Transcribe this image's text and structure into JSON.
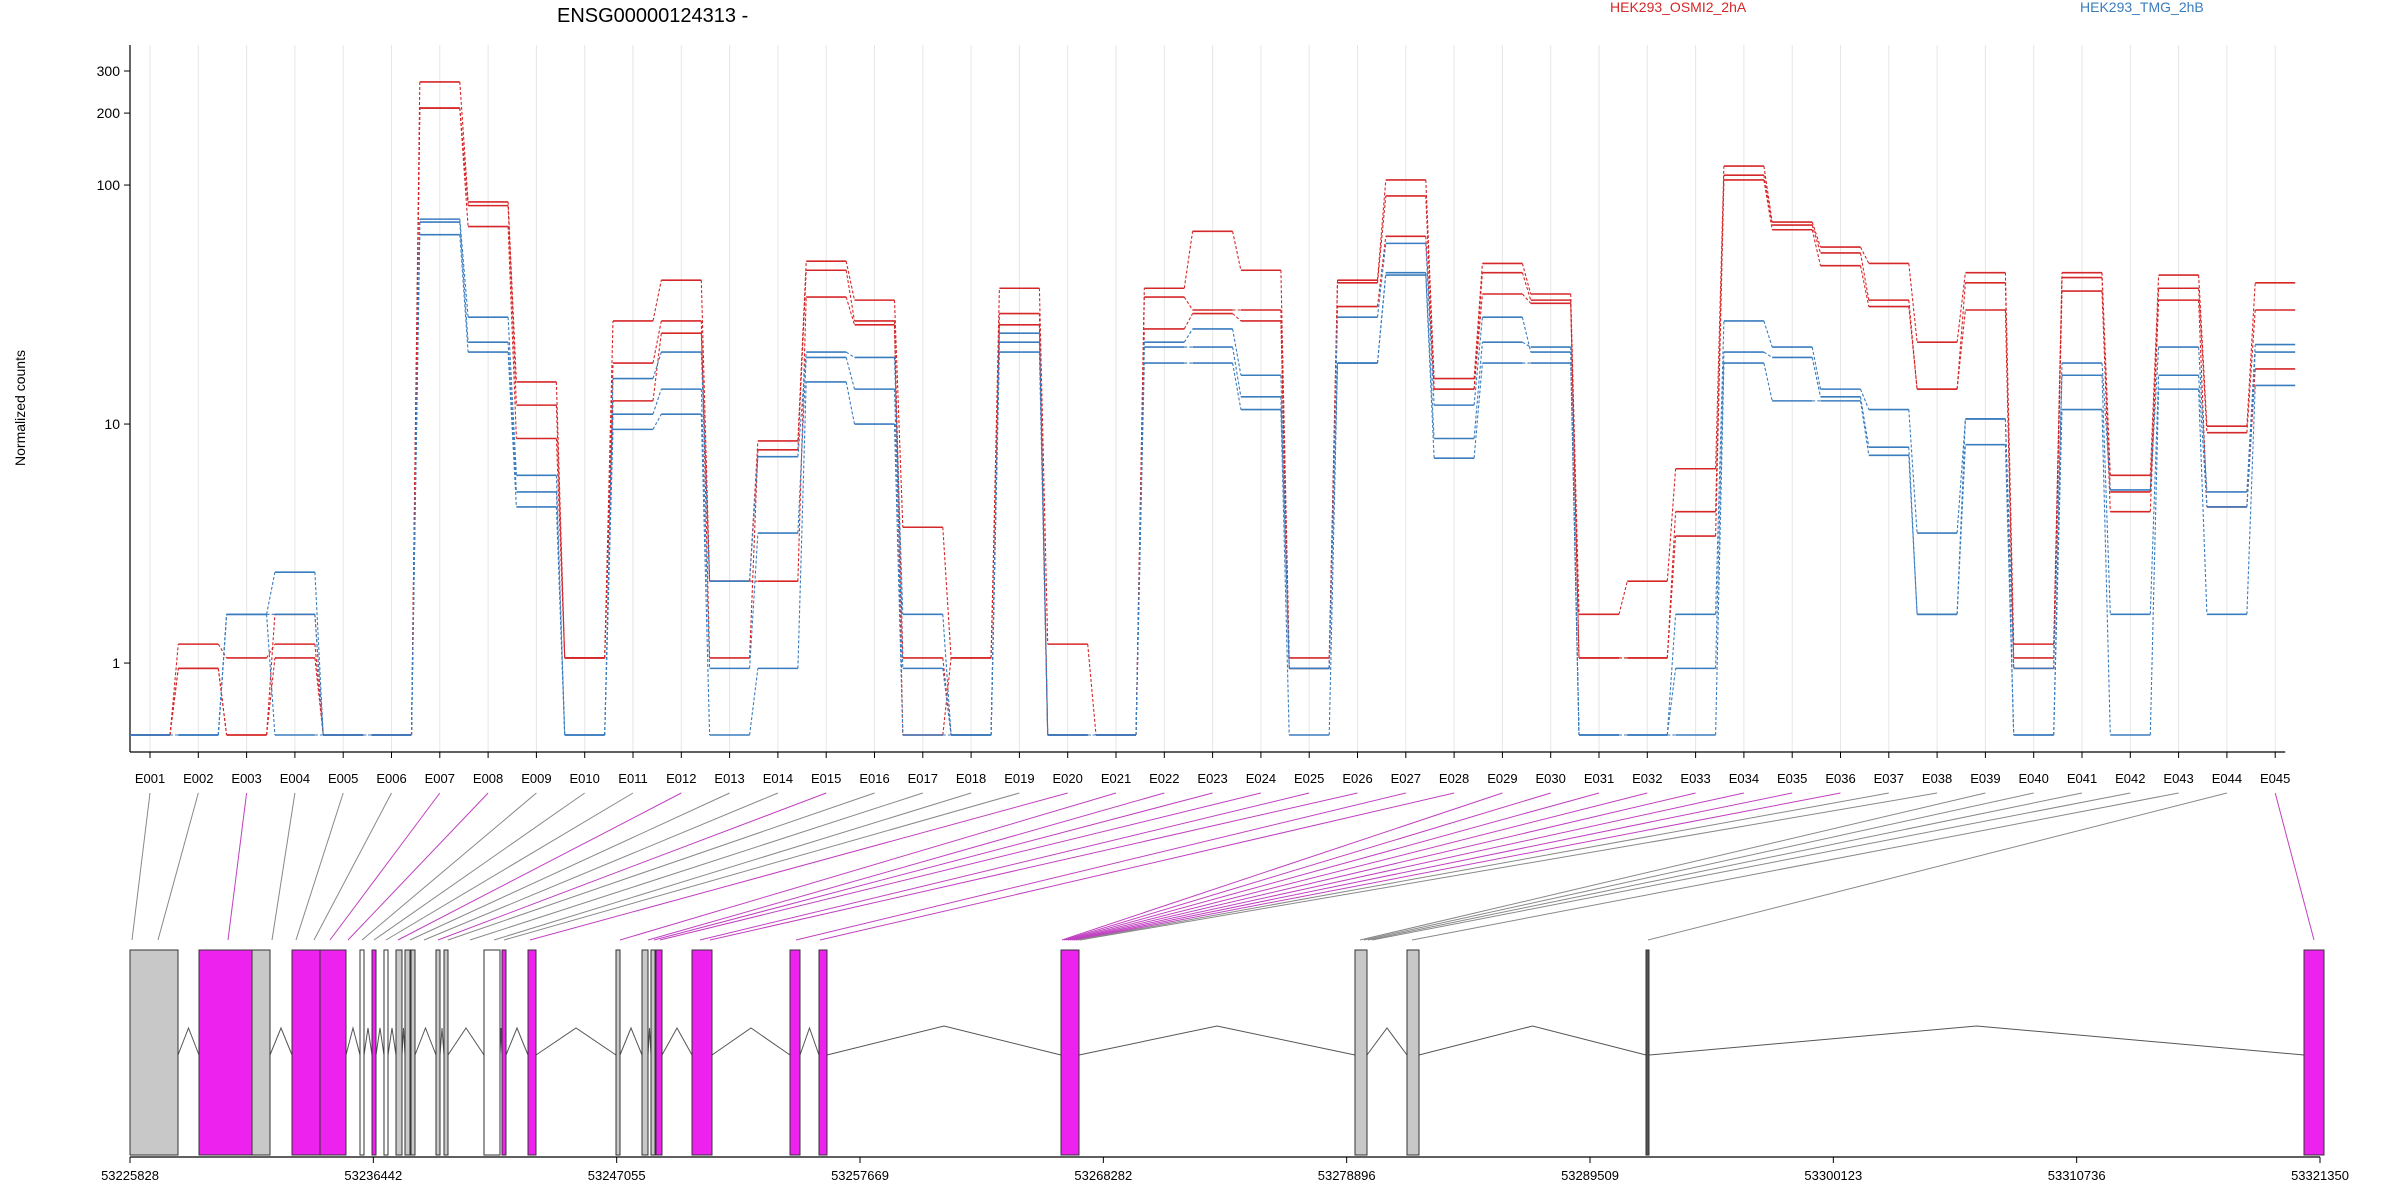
{
  "chart_data": {
    "type": "line",
    "title": "ENSG00000124313 -",
    "ylabel": "Normalized counts",
    "y_scale": "log",
    "ylim": [
      0.5,
      350
    ],
    "y_ticks": [
      1,
      10,
      100,
      200,
      300
    ],
    "legend_position": "top-right",
    "legend": [
      {
        "name": "HEK293_OSMI2_2hA",
        "color": "#d62728"
      },
      {
        "name": "HEK293_TMG_2hB",
        "color": "#3a7dbf"
      }
    ],
    "x": [
      "E001",
      "E002",
      "E003",
      "E004",
      "E005",
      "E006",
      "E007",
      "E008",
      "E009",
      "E010",
      "E011",
      "E012",
      "E013",
      "E014",
      "E015",
      "E016",
      "E017",
      "E018",
      "E019",
      "E020",
      "E021",
      "E022",
      "E023",
      "E024",
      "E025",
      "E026",
      "E027",
      "E028",
      "E029",
      "E030",
      "E031",
      "E032",
      "E033",
      "E034",
      "E035",
      "E036",
      "E037",
      "E038",
      "E039",
      "E040",
      "E041",
      "E042",
      "E043",
      "E044",
      "E045"
    ],
    "series": [
      {
        "group": "HEK293_OSMI2_2hA",
        "color": "#d62728",
        "values": [
          0.5,
          1.2,
          1.05,
          1.2,
          0.5,
          0.5,
          270,
          85,
          15,
          1.05,
          27,
          40,
          2.2,
          8.5,
          48,
          33,
          3.7,
          1.05,
          37,
          1.2,
          0.5,
          37,
          64,
          44,
          1.05,
          40,
          105,
          15.5,
          47,
          35,
          1.6,
          2.2,
          6.5,
          120,
          70,
          55,
          47,
          22,
          43,
          1.2,
          43,
          6.1,
          42,
          9.8,
          39
        ]
      },
      {
        "group": "HEK293_OSMI2_2hA",
        "color": "#d62728",
        "values": [
          0.5,
          0.95,
          0.5,
          1.05,
          0.5,
          0.5,
          210,
          82,
          12,
          1.05,
          18,
          27,
          1.05,
          7.8,
          44,
          27,
          1.05,
          0.5,
          29,
          0.5,
          0.5,
          34,
          30,
          30,
          0.95,
          39,
          90,
          14,
          43,
          33,
          1.05,
          1.05,
          4.3,
          110,
          68,
          52,
          33,
          14,
          39,
          1.05,
          41,
          5.2,
          37,
          9.2,
          30
        ]
      },
      {
        "group": "HEK293_OSMI2_2hA",
        "color": "#d62728",
        "values": [
          0.5,
          0.95,
          0.5,
          1.6,
          0.5,
          0.5,
          210,
          67,
          8.7,
          1.05,
          12.5,
          24,
          2.2,
          2.2,
          34,
          26,
          0.5,
          1.05,
          26,
          0.5,
          0.5,
          25,
          29,
          27,
          0.95,
          31,
          61,
          14,
          35,
          32,
          1.05,
          1.05,
          3.4,
          105,
          65,
          46,
          31,
          14,
          30,
          0.95,
          36,
          4.3,
          33,
          4.5,
          17
        ]
      },
      {
        "group": "HEK293_TMG_2hB",
        "color": "#3a7dbf",
        "values": [
          0.5,
          0.5,
          1.6,
          2.4,
          0.5,
          0.5,
          72,
          28,
          6.1,
          0.5,
          15.5,
          20,
          2.2,
          7.3,
          20,
          19,
          1.6,
          0.5,
          24,
          0.5,
          0.5,
          22,
          25,
          16,
          0.95,
          28,
          57,
          12,
          28,
          20,
          0.5,
          0.5,
          1.6,
          27,
          21,
          14,
          11.5,
          3.5,
          10.5,
          0.5,
          18,
          5.3,
          21,
          5.2,
          21.5
        ]
      },
      {
        "group": "HEK293_TMG_2hB",
        "color": "#3a7dbf",
        "values": [
          0.5,
          0.5,
          1.6,
          1.6,
          0.5,
          0.5,
          70,
          22,
          5.2,
          0.5,
          11,
          14,
          0.95,
          3.5,
          19,
          14,
          0.95,
          0.5,
          22,
          0.5,
          0.5,
          21,
          21,
          13,
          0.95,
          18,
          43,
          8.7,
          22,
          21,
          0.5,
          0.5,
          0.95,
          20,
          19,
          13,
          8,
          1.6,
          10.5,
          0.95,
          16,
          1.6,
          16,
          4.5,
          20
        ]
      },
      {
        "group": "HEK293_TMG_2hB",
        "color": "#3a7dbf",
        "values": [
          0.5,
          0.5,
          1.6,
          0.5,
          0.5,
          0.5,
          62,
          20,
          4.5,
          0.5,
          9.5,
          11,
          0.5,
          0.95,
          15,
          10,
          0.5,
          0.5,
          20,
          0.5,
          0.5,
          18,
          18,
          11.5,
          0.5,
          18,
          42,
          7.2,
          18,
          18,
          0.5,
          0.5,
          0.5,
          18,
          12.5,
          12.5,
          7.4,
          1.6,
          8.2,
          0.5,
          11.5,
          0.5,
          14,
          1.6,
          14.5
        ]
      }
    ],
    "gene_model": {
      "coordinate_ticks": [
        "53225828",
        "53236442",
        "53247055",
        "53257669",
        "53268282",
        "53278896",
        "53289509",
        "53300123",
        "53310736",
        "53321350"
      ],
      "exon_highlight_color": "#ee22ee",
      "exon_default_color": "#c8c8c8"
    }
  }
}
